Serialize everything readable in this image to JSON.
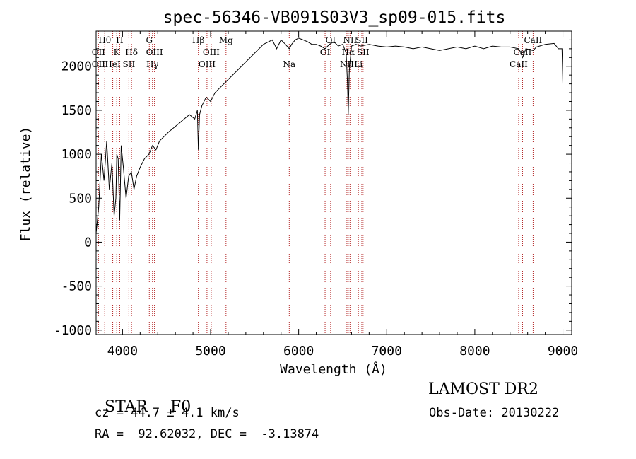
{
  "chart_data": {
    "type": "line",
    "title": "spec-56346-VB091S03V3_sp09-015.fits",
    "xlabel": "Wavelength (Å)",
    "ylabel": "Flux (relative)",
    "xlim": [
      3700,
      9100
    ],
    "ylim": [
      -1050,
      2400
    ],
    "xticks": [
      4000,
      5000,
      6000,
      7000,
      8000,
      9000
    ],
    "yticks": [
      -1000,
      -500,
      0,
      500,
      1000,
      1500,
      2000
    ],
    "series": [
      {
        "x": [
          3700,
          3730,
          3760,
          3790,
          3820,
          3850,
          3880,
          3905,
          3925,
          3935,
          3950,
          3968,
          3985,
          4010,
          4040,
          4070,
          4100,
          4130,
          4160,
          4200,
          4250,
          4300,
          4340,
          4380,
          4420,
          4470,
          4520,
          4580,
          4640,
          4700,
          4760,
          4820,
          4850,
          4861,
          4875,
          4900,
          4950,
          5000,
          5050,
          5100,
          5150,
          5200,
          5300,
          5400,
          5500,
          5600,
          5700,
          5750,
          5800,
          5850,
          5893,
          5920,
          5960,
          6000,
          6050,
          6100,
          6150,
          6200,
          6250,
          6300,
          6350,
          6400,
          6450,
          6500,
          6540,
          6555,
          6563,
          6575,
          6600,
          6650,
          6700,
          6800,
          6900,
          7000,
          7100,
          7200,
          7300,
          7400,
          7500,
          7600,
          7700,
          7800,
          7900,
          8000,
          8100,
          8200,
          8300,
          8400,
          8498,
          8520,
          8542,
          8580,
          8662,
          8700,
          8800,
          8900,
          8950,
          8990,
          9000
        ],
        "y": [
          100,
          400,
          1000,
          700,
          1150,
          600,
          900,
          300,
          500,
          1000,
          950,
          250,
          1100,
          850,
          500,
          750,
          800,
          600,
          750,
          850,
          950,
          1000,
          1100,
          1050,
          1150,
          1200,
          1250,
          1300,
          1350,
          1400,
          1450,
          1400,
          1500,
          1050,
          1450,
          1550,
          1650,
          1600,
          1700,
          1750,
          1800,
          1850,
          1950,
          2050,
          2150,
          2250,
          2300,
          2200,
          2300,
          2250,
          2200,
          2250,
          2300,
          2320,
          2300,
          2280,
          2250,
          2250,
          2230,
          2200,
          2250,
          2280,
          2230,
          2250,
          2150,
          1800,
          1450,
          1950,
          2230,
          2250,
          2230,
          2250,
          2230,
          2220,
          2230,
          2220,
          2200,
          2220,
          2200,
          2180,
          2200,
          2220,
          2200,
          2230,
          2200,
          2230,
          2220,
          2220,
          2200,
          2160,
          2100,
          2200,
          2180,
          2220,
          2250,
          2260,
          2200,
          2200,
          1800
        ]
      }
    ],
    "lines": [
      {
        "wave": 3727,
        "top": "",
        "mid": "OII",
        "bot": "OII"
      },
      {
        "wave": 3798,
        "top": "Hθ",
        "mid": "",
        "bot": ""
      },
      {
        "wave": 3889,
        "top": "",
        "mid": "",
        "bot": "HeI"
      },
      {
        "wave": 3934,
        "top": "",
        "mid": "K",
        "bot": ""
      },
      {
        "wave": 3968,
        "top": "H",
        "mid": "",
        "bot": ""
      },
      {
        "wave": 4072,
        "top": "",
        "mid": "",
        "bot": "SII"
      },
      {
        "wave": 4102,
        "top": "",
        "mid": "Hδ",
        "bot": ""
      },
      {
        "wave": 4304,
        "top": "G",
        "mid": "",
        "bot": ""
      },
      {
        "wave": 4340,
        "top": "",
        "mid": "",
        "bot": "Hγ"
      },
      {
        "wave": 4363,
        "top": "",
        "mid": "OIII",
        "bot": ""
      },
      {
        "wave": 4861,
        "top": "Hβ",
        "mid": "",
        "bot": ""
      },
      {
        "wave": 4959,
        "top": "",
        "mid": "",
        "bot": "OIII"
      },
      {
        "wave": 5007,
        "top": "",
        "mid": "OIII",
        "bot": ""
      },
      {
        "wave": 5175,
        "top": "Mg",
        "mid": "",
        "bot": ""
      },
      {
        "wave": 5893,
        "top": "",
        "mid": "",
        "bot": "Na"
      },
      {
        "wave": 6300,
        "top": "",
        "mid": "OI",
        "bot": ""
      },
      {
        "wave": 6363,
        "top": "OI",
        "mid": "",
        "bot": ""
      },
      {
        "wave": 6548,
        "top": "",
        "mid": "",
        "bot": "NII"
      },
      {
        "wave": 6563,
        "top": "",
        "mid": "Hα",
        "bot": ""
      },
      {
        "wave": 6583,
        "top": "NII",
        "mid": "",
        "bot": ""
      },
      {
        "wave": 6678,
        "top": "",
        "mid": "",
        "bot": "Li"
      },
      {
        "wave": 6717,
        "top": "SII",
        "mid": "",
        "bot": ""
      },
      {
        "wave": 6731,
        "top": "",
        "mid": "SII",
        "bot": ""
      },
      {
        "wave": 8498,
        "top": "",
        "mid": "",
        "bot": "CaII"
      },
      {
        "wave": 8542,
        "top": "",
        "mid": "CaII",
        "bot": ""
      },
      {
        "wave": 8662,
        "top": "CaII",
        "mid": "",
        "bot": ""
      }
    ],
    "line_color": "#000000",
    "marker_color": "#b22222",
    "grid": false
  },
  "info": {
    "class_label": "STAR",
    "subclass": "F0",
    "survey": "LAMOST DR2",
    "velocity": "cz = 44.7 ± 4.1 km/s",
    "obs_date": "Obs-Date: 20130222",
    "coords": "RA =  92.62032, DEC =  -3.13874"
  }
}
